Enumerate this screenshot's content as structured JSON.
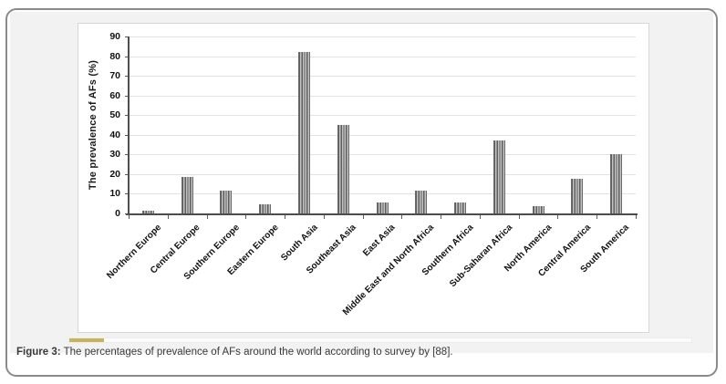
{
  "figure": {
    "caption_label": "Figure 3:",
    "caption_text": "The percentages of prevalence of AFs around the world according to survey by [88]."
  },
  "chart_data": {
    "type": "bar",
    "title": "",
    "xlabel": "",
    "ylabel": "The prevalence of AFs (%)",
    "ylim": [
      0,
      90
    ],
    "yticks": [
      0,
      10,
      20,
      30,
      40,
      50,
      60,
      70,
      80,
      90
    ],
    "grid": true,
    "legend": false,
    "bar_fill_pattern": "vertical-stripes",
    "categories": [
      "Northern Europe",
      "Central Europe",
      "Southern Europe",
      "Eastern Europe",
      "South Asia",
      "Southeast Asia",
      "East Asia",
      "Middle East and North Africa",
      "Southern Africa",
      "Sub-Saharan Africa",
      "North America",
      "Central America",
      "South America"
    ],
    "values": [
      1.5,
      18.5,
      11.5,
      4.5,
      82,
      45,
      5.5,
      11.5,
      5.5,
      37,
      3.5,
      17.5,
      30
    ]
  },
  "colors": {
    "bar_stripe_dark": "#5f5f5f",
    "bar_stripe_light": "#c2c2c2",
    "gridline": "#e2e2e2",
    "axis": "#4d4d4d",
    "chart_text": "#111111",
    "figure_background": "#f2f2f2",
    "panel_border": "#d6d6d6",
    "card_border": "#8a8a8a",
    "scrollbar_thumb": "#c6b45a",
    "scrollbar_track": "#fbfbfb",
    "caption_text": "#3a3a3a"
  }
}
